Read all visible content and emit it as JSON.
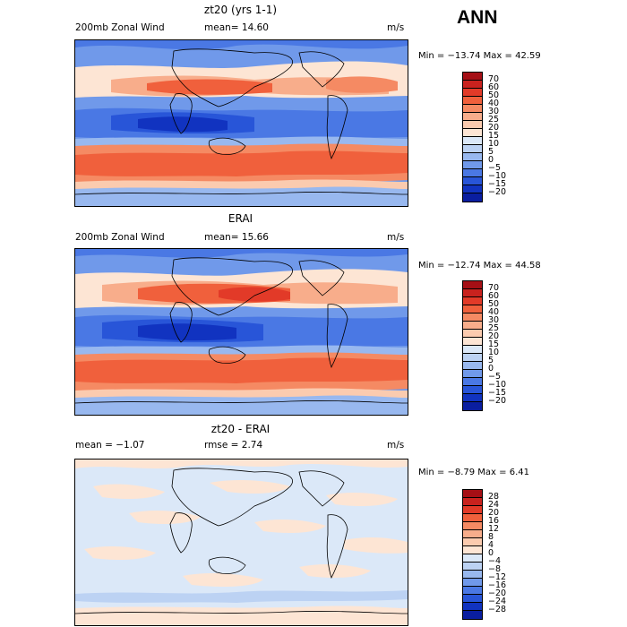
{
  "season": "ANN",
  "panels": [
    {
      "title": "zt20 (yrs 1-1)",
      "left_text": "200mb Zonal Wind",
      "stat_text": "mean=  14.60",
      "units": "m/s",
      "minmax": "Min = −13.74 Max =   42.59",
      "colorbar": {
        "labels": [
          "70",
          "60",
          "50",
          "40",
          "30",
          "25",
          "20",
          "15",
          "10",
          "5",
          "0",
          "−5",
          "−10",
          "−15",
          "−20"
        ],
        "colors": [
          "#a50f15",
          "#c9221e",
          "#e23a28",
          "#f0603c",
          "#f58a63",
          "#f8ad8b",
          "#fbcbaf",
          "#fde5d4",
          "#dbe8f8",
          "#bcd2f3",
          "#98b8ef",
          "#7099ea",
          "#4a78e4",
          "#2855d8",
          "#1133c0",
          "#0a1ea0"
        ]
      }
    },
    {
      "title": "ERAI",
      "left_text": "200mb Zonal Wind",
      "stat_text": "mean=  15.66",
      "units": "m/s",
      "minmax": "Min = −12.74 Max =   44.58",
      "colorbar": {
        "labels": [
          "70",
          "60",
          "50",
          "40",
          "30",
          "25",
          "20",
          "15",
          "10",
          "5",
          "0",
          "−5",
          "−10",
          "−15",
          "−20"
        ],
        "colors": [
          "#a50f15",
          "#c9221e",
          "#e23a28",
          "#f0603c",
          "#f58a63",
          "#f8ad8b",
          "#fbcbaf",
          "#fde5d4",
          "#dbe8f8",
          "#bcd2f3",
          "#98b8ef",
          "#7099ea",
          "#4a78e4",
          "#2855d8",
          "#1133c0",
          "#0a1ea0"
        ]
      }
    },
    {
      "title": "zt20 - ERAI",
      "left_text": "mean =  −1.07",
      "stat_text": "rmse =   2.74",
      "units": "m/s",
      "minmax": "Min =  −8.79 Max =    6.41",
      "colorbar": {
        "labels": [
          "28",
          "24",
          "20",
          "16",
          "12",
          "8",
          "4",
          "0",
          "−4",
          "−8",
          "−12",
          "−16",
          "−20",
          "−24",
          "−28"
        ],
        "colors": [
          "#a50f15",
          "#c9221e",
          "#e23a28",
          "#f0603c",
          "#f58a63",
          "#f8ad8b",
          "#fbcbaf",
          "#fde5d4",
          "#dbe8f8",
          "#bcd2f3",
          "#98b8ef",
          "#7099ea",
          "#4a78e4",
          "#2855d8",
          "#1133c0",
          "#0a1ea0"
        ]
      }
    }
  ]
}
